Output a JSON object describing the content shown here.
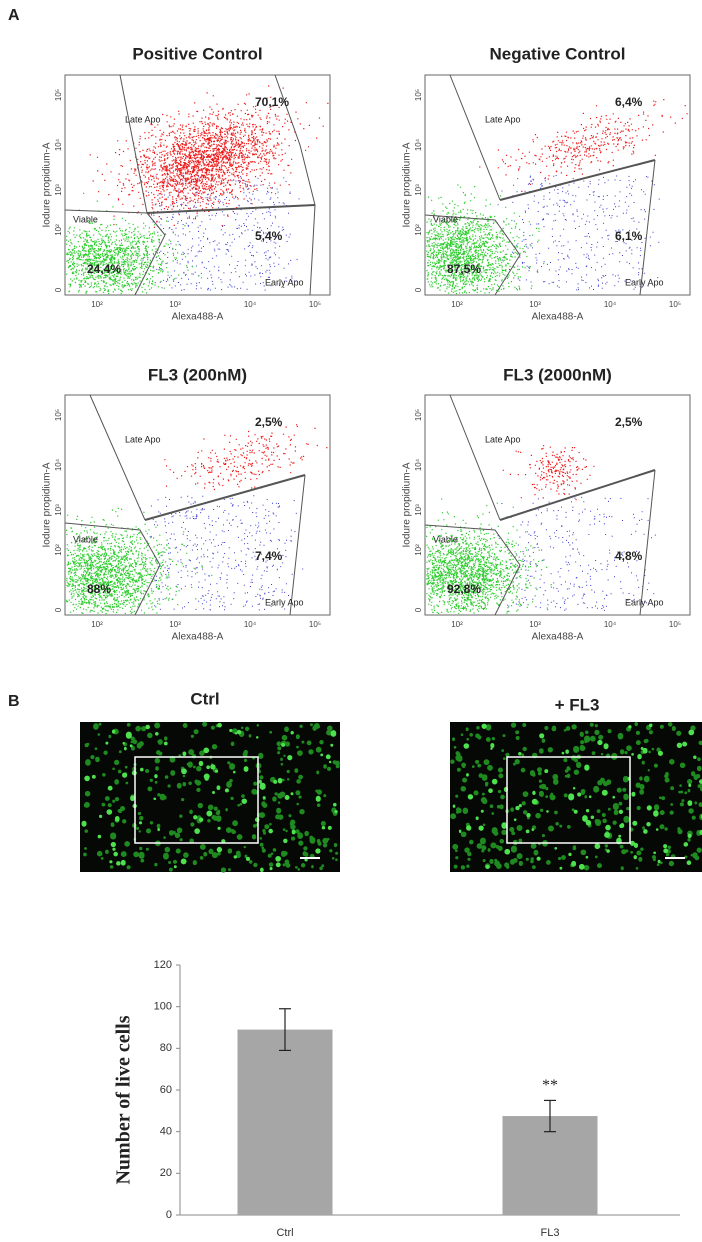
{
  "figure": {
    "panel_labels": [
      "A",
      "B"
    ],
    "flow": {
      "x_label": "Alexa488-A",
      "y_label": "Iodure propidium-A",
      "region_labels": {
        "late": "Late Apo",
        "viable": "Viable",
        "early": "Early Apo"
      },
      "x_ticks": [
        "10²",
        "10³",
        "10⁴",
        "10⁵"
      ],
      "y_ticks": [
        "0",
        "10²",
        "10³",
        "10⁴",
        "10⁵"
      ],
      "plots": [
        {
          "title": "Positive Control",
          "late": "70,1%",
          "early": "5,4%",
          "viable": "24,4%"
        },
        {
          "title": "Negative Control",
          "late": "6,4%",
          "early": "6,1%",
          "viable": "87,5%"
        },
        {
          "title": "FL3 (200nM)",
          "late": "2,5%",
          "early": "7,4%",
          "viable": "88%"
        },
        {
          "title": "FL3 (2000nM)",
          "late": "2,5%",
          "early": "4,8%",
          "viable": "92,8%"
        }
      ]
    },
    "micrographs": [
      {
        "title": "Ctrl"
      },
      {
        "title": "+ FL3"
      }
    ]
  },
  "chart_data": {
    "type": "bar",
    "y_label": "Number of live cells",
    "categories": [
      "Ctrl",
      "FL3"
    ],
    "values": [
      89,
      47.5
    ],
    "errors": [
      10,
      7.5
    ],
    "color": "#a6a6a6",
    "ylim": [
      0,
      120
    ],
    "yticks": [
      0,
      20,
      40,
      60,
      80,
      100,
      120
    ],
    "annotations": [
      null,
      "**"
    ]
  }
}
